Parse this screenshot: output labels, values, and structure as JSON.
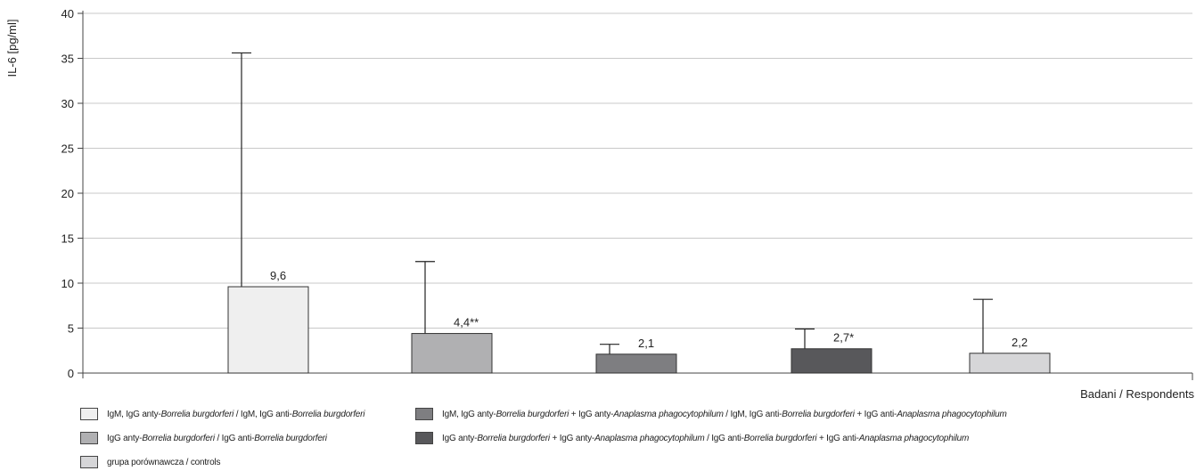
{
  "chart_data": {
    "type": "bar",
    "ylabel": "IL-6 [pg/ml]",
    "xlabel": "Badani / Respondents",
    "ylim": [
      0,
      40
    ],
    "yticks": [
      0,
      5,
      10,
      15,
      20,
      25,
      30,
      35,
      40
    ],
    "grid": "horizontal",
    "legend_position": "bottom",
    "series": [
      {
        "label": "IgM, IgG anty-Borrelia burgdorferi / IgM, IgG anti-Borrelia burgdorferi",
        "value": 9.6,
        "error": 35.6,
        "data_label": "9,6",
        "color": "#efefef"
      },
      {
        "label": "IgG anty-Borrelia burgdorferi / IgG anti-Borrelia burgdorferi",
        "value": 4.4,
        "error": 12.4,
        "data_label": "4,4**",
        "color": "#b0b0b2"
      },
      {
        "label": "IgM, IgG anty-Borrelia burgdorferi + IgG anty-Anaplasma phagocytophilum / IgM, IgG anti-Borrelia burgdorferi + IgG anti-Anaplasma phagocytophilum",
        "value": 2.1,
        "error": 3.2,
        "data_label": "2,1",
        "color": "#7e7e81"
      },
      {
        "label": "IgG anty-Borrelia burgdorferi + IgG anty-Anaplasma phagocytophilum / IgG anti-Borrelia burgdorferi + IgG anti-Anaplasma phagocytophilum",
        "value": 2.7,
        "error": 4.9,
        "data_label": "2,7*",
        "color": "#58585b"
      },
      {
        "label": "grupa porównawcza / controls",
        "value": 2.2,
        "error": 8.2,
        "data_label": "2,2",
        "color": "#d6d6d8"
      }
    ]
  }
}
